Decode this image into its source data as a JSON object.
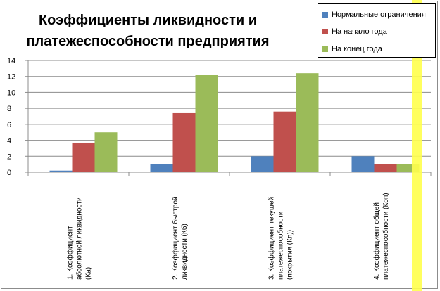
{
  "chart_data": {
    "type": "bar",
    "title": "Коэффициенты ликвидности и платежеспособности предприятия",
    "title_lines": [
      "Коэффициенты ликвидности и",
      "платежеспособности предприятия"
    ],
    "categories": [
      [
        "1. Коэффициент",
        "абсолютной ликвидности",
        "(Ка)"
      ],
      [
        "2. Коэффициент быстрой",
        "ликвидности (Кб)"
      ],
      [
        "3. Коэффициент текущей",
        "платежеспособности",
        "(покрытия (Кп))"
      ],
      [
        "4. Коэффициент общей",
        "платежеспособности (Коп)"
      ]
    ],
    "series": [
      {
        "name": "Нормальные ограничения",
        "color": "#4f81bd",
        "values": [
          0.2,
          1.0,
          2.0,
          2.0
        ]
      },
      {
        "name": "На начало года",
        "color": "#c0504d",
        "values": [
          3.7,
          7.4,
          7.6,
          1.0
        ]
      },
      {
        "name": "На конец года",
        "color": "#9bbb59",
        "values": [
          5.0,
          12.2,
          12.4,
          1.0
        ]
      }
    ],
    "yticks": [
      "0",
      "2",
      "4",
      "6",
      "8",
      "10",
      "12",
      "14"
    ],
    "ylim": [
      0,
      14
    ],
    "grid": true,
    "legend": "top-right"
  }
}
